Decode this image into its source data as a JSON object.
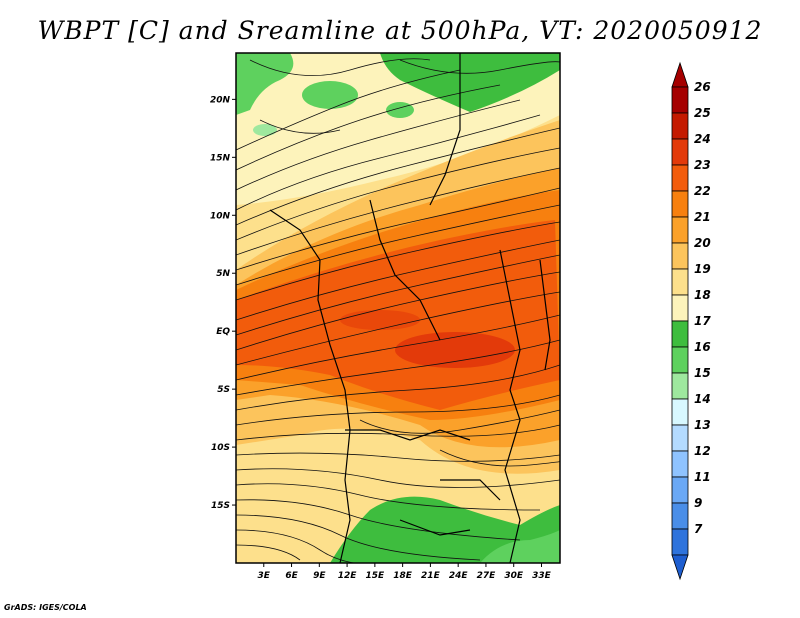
{
  "title": "WBPT [C] and Sreamline at 500hPa, VT: 2020050912",
  "credit": "GrADS: IGES/COLA",
  "map": {
    "lon_range": [
      0,
      35
    ],
    "lat_range": [
      -20,
      24
    ],
    "lat_ticks": [
      {
        "value": 20,
        "label": "20N"
      },
      {
        "value": 15,
        "label": "15N"
      },
      {
        "value": 10,
        "label": "10N"
      },
      {
        "value": 5,
        "label": "5N"
      },
      {
        "value": 0,
        "label": "EQ"
      },
      {
        "value": -5,
        "label": "5S"
      },
      {
        "value": -10,
        "label": "10S"
      },
      {
        "value": -15,
        "label": "15S"
      }
    ],
    "lon_ticks": [
      {
        "value": 3,
        "label": "3E"
      },
      {
        "value": 6,
        "label": "6E"
      },
      {
        "value": 9,
        "label": "9E"
      },
      {
        "value": 12,
        "label": "12E"
      },
      {
        "value": 15,
        "label": "15E"
      },
      {
        "value": 18,
        "label": "18E"
      },
      {
        "value": 21,
        "label": "21E"
      },
      {
        "value": 24,
        "label": "24E"
      },
      {
        "value": 27,
        "label": "27E"
      },
      {
        "value": 30,
        "label": "30E"
      },
      {
        "value": 33,
        "label": "33E"
      }
    ]
  },
  "colorbar": {
    "levels": [
      {
        "label": "26",
        "color": "#a50000"
      },
      {
        "label": "25",
        "color": "#c41a00"
      },
      {
        "label": "24",
        "color": "#e33a0a"
      },
      {
        "label": "23",
        "color": "#f25c0c"
      },
      {
        "label": "22",
        "color": "#f7800f"
      },
      {
        "label": "21",
        "color": "#fba12a"
      },
      {
        "label": "20",
        "color": "#fcc45c"
      },
      {
        "label": "19",
        "color": "#fde08c"
      },
      {
        "label": "18",
        "color": "#fdf3bb"
      },
      {
        "label": "17",
        "color": "#3ebd3e"
      },
      {
        "label": "16",
        "color": "#5ed15e"
      },
      {
        "label": "15",
        "color": "#9ee89e"
      },
      {
        "label": "14",
        "color": "#d8f8ff"
      },
      {
        "label": "13",
        "color": "#b4dbff"
      },
      {
        "label": "12",
        "color": "#8fc3ff"
      },
      {
        "label": "11",
        "color": "#6aa8f5"
      },
      {
        "label": "9",
        "color": "#4a8ee8"
      },
      {
        "label": "7",
        "color": "#2e73dc"
      }
    ],
    "top_cap_color": "#a50000",
    "bottom_cap_color": "#1e5ed0"
  }
}
